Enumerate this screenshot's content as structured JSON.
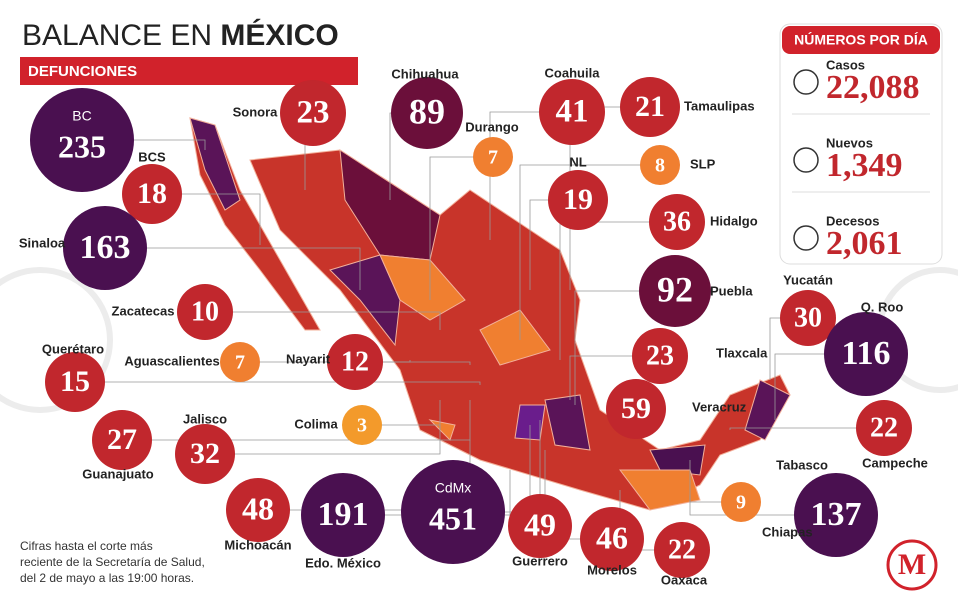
{
  "header": {
    "title_light": "BALANCE EN",
    "title_bold": "MÉXICO",
    "subtitle": "DEFUNCIONES"
  },
  "states": [
    {
      "name": "BC",
      "value": "235",
      "color": "#4a1050"
    },
    {
      "name": "Sonora",
      "value": "23",
      "color": "#c1272d"
    },
    {
      "name": "Chihuahua",
      "value": "89",
      "color": "#6b0f3a"
    },
    {
      "name": "Coahuila",
      "value": "41",
      "color": "#c1272d"
    },
    {
      "name": "Tamaulipas",
      "value": "21",
      "color": "#c1272d"
    },
    {
      "name": "Durango",
      "value": "7",
      "color": "#f07f30"
    },
    {
      "name": "BCS",
      "value": "18",
      "color": "#c1272d"
    },
    {
      "name": "NL",
      "value": "19",
      "color": "#c1272d"
    },
    {
      "name": "SLP",
      "value": "8",
      "color": "#f07f30"
    },
    {
      "name": "Hidalgo",
      "value": "36",
      "color": "#c1272d"
    },
    {
      "name": "Sinaloa",
      "value": "163",
      "color": "#4a1050"
    },
    {
      "name": "Puebla",
      "value": "92",
      "color": "#6b0f3a"
    },
    {
      "name": "Yucatán",
      "value": "30",
      "color": "#c1272d"
    },
    {
      "name": "Q. Roo",
      "value": "116",
      "color": "#4a1050"
    },
    {
      "name": "Zacatecas",
      "value": "10",
      "color": "#c1272d"
    },
    {
      "name": "Aguascalientes",
      "value": "7",
      "color": "#f07f30"
    },
    {
      "name": "Nayarit",
      "value": "12",
      "color": "#c1272d"
    },
    {
      "name": "Tlaxcala",
      "value": "23",
      "color": "#c1272d"
    },
    {
      "name": "Querétaro",
      "value": "15",
      "color": "#c1272d"
    },
    {
      "name": "Veracruz",
      "value": "59",
      "color": "#c1272d"
    },
    {
      "name": "Campeche",
      "value": "22",
      "color": "#c1272d"
    },
    {
      "name": "Colima",
      "value": "3",
      "color": "#f39a2b"
    },
    {
      "name": "Jalisco",
      "value": "32",
      "color": "#c1272d"
    },
    {
      "name": "Guanajuato",
      "value": "27",
      "color": "#c1272d"
    },
    {
      "name": "Tabasco",
      "value": "137",
      "color": "#4a1050"
    },
    {
      "name": "Michoacán",
      "value": "48",
      "color": "#c1272d"
    },
    {
      "name": "Edo. México",
      "value": "191",
      "color": "#4a1050"
    },
    {
      "name": "CdMx",
      "value": "451",
      "color": "#4a1050"
    },
    {
      "name": "Guerrero",
      "value": "49",
      "color": "#c1272d"
    },
    {
      "name": "Morelos",
      "value": "46",
      "color": "#c1272d"
    },
    {
      "name": "Oaxaca",
      "value": "22",
      "color": "#c1272d"
    },
    {
      "name": "Chiapas",
      "value": "9",
      "color": "#f07f30"
    }
  ],
  "daily": {
    "title": "NÚMEROS POR DÍA",
    "items": [
      {
        "label": "Casos",
        "value": "22,088"
      },
      {
        "label": "Nuevos",
        "value": "1,349"
      },
      {
        "label": "Decesos",
        "value": "2,061"
      }
    ]
  },
  "footnote": [
    "Cifras hasta el corte más",
    "reciente de la Secretaría de Salud,",
    "del 2 de mayo a las 19:00 horas."
  ]
}
